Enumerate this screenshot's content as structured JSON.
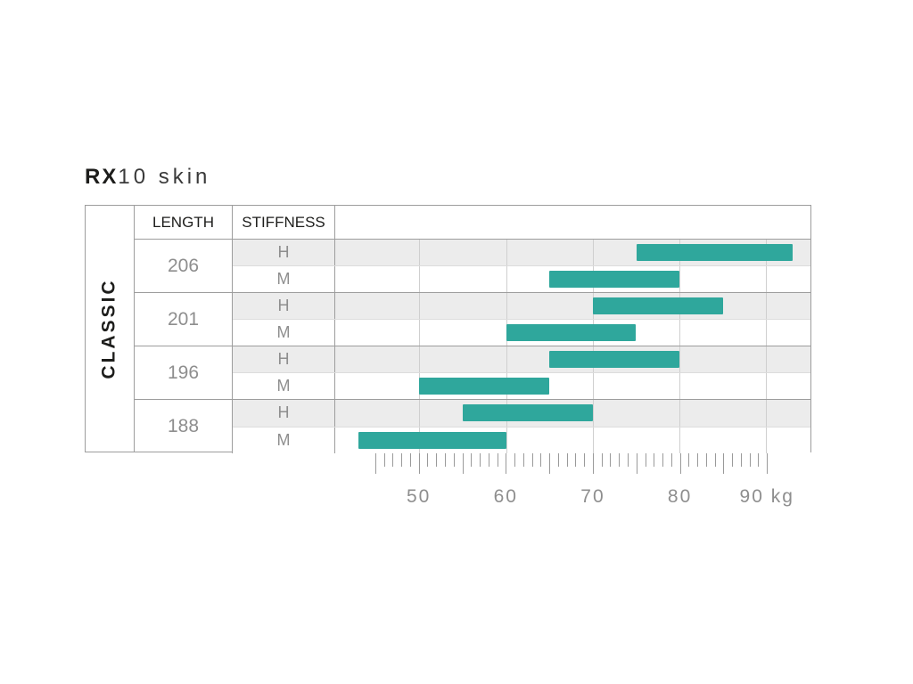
{
  "title": {
    "bold": "RX",
    "rest": "10 skin"
  },
  "category_label": "CLASSIC",
  "columns": {
    "length": "LENGTH",
    "stiffness": "STIFFNESS"
  },
  "axis": {
    "unit": "kg",
    "min": 40.3,
    "max": 95.1,
    "tick_values": [
      50,
      60,
      70,
      80,
      90
    ],
    "tick_labels": [
      "50",
      "60",
      "70",
      "80",
      "90 kg"
    ],
    "minor_tick_start": 45,
    "minor_tick_end": 90,
    "minor_tick_step": 1
  },
  "colors": {
    "bar": "#2fa79c",
    "row_alt": "#ececec",
    "border": "#9d9d9d",
    "grid": "#cfcfcf",
    "gray_text": "#8e8e8e",
    "dark_text": "#1d1d1b"
  },
  "chart_data": {
    "type": "bar",
    "orientation": "horizontal-range",
    "title": "RX10 skin",
    "xlabel": "kg",
    "xlim": [
      40.3,
      95.1
    ],
    "x_ticks": [
      50,
      60,
      70,
      80,
      90
    ],
    "rows": [
      {
        "length": "206",
        "stiffness": "H",
        "range": [
          75,
          93
        ]
      },
      {
        "length": "206",
        "stiffness": "M",
        "range": [
          65,
          80
        ]
      },
      {
        "length": "201",
        "stiffness": "H",
        "range": [
          70,
          85
        ]
      },
      {
        "length": "201",
        "stiffness": "M",
        "range": [
          60,
          75
        ]
      },
      {
        "length": "196",
        "stiffness": "H",
        "range": [
          65,
          80
        ]
      },
      {
        "length": "196",
        "stiffness": "M",
        "range": [
          50,
          65
        ]
      },
      {
        "length": "188",
        "stiffness": "H",
        "range": [
          55,
          70
        ]
      },
      {
        "length": "188",
        "stiffness": "M",
        "range": [
          43,
          60
        ]
      }
    ]
  }
}
